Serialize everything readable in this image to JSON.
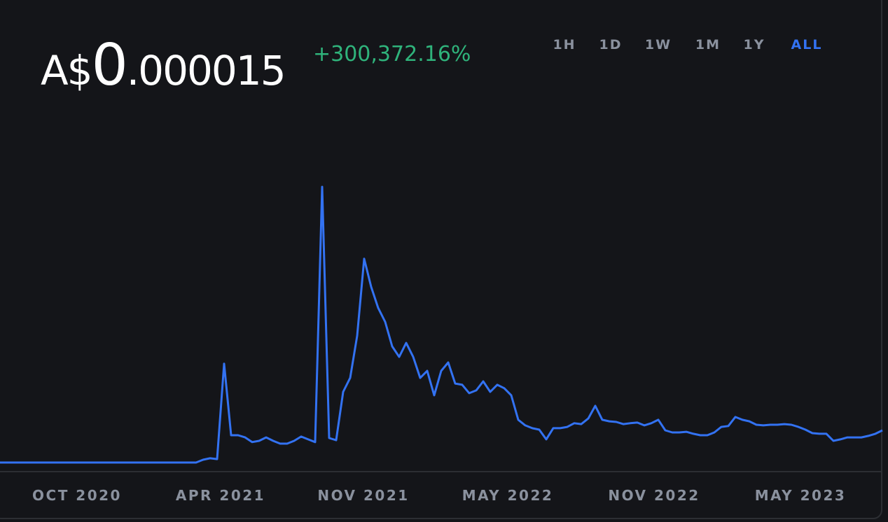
{
  "price": {
    "currency": "A$",
    "whole": "0",
    "fraction": ".000015"
  },
  "change": "+300,372.16%",
  "ranges": [
    "1H",
    "1D",
    "1W",
    "1M",
    "1Y",
    "ALL"
  ],
  "selected_range": "ALL",
  "chart_data": {
    "type": "line",
    "color": "#3372f2",
    "values": [
      5e-09,
      5e-09,
      5e-09,
      5e-09,
      5e-09,
      5e-09,
      5e-09,
      5e-09,
      5e-09,
      5e-09,
      5e-09,
      5e-09,
      5e-09,
      5e-09,
      5e-09,
      5e-09,
      5e-09,
      5e-09,
      5e-09,
      5e-09,
      5e-09,
      5e-09,
      5e-09,
      5e-09,
      5e-09,
      5e-09,
      5e-09,
      5e-09,
      5e-09,
      1.3e-06,
      2e-06,
      1.6e-06,
      4.6e-05,
      1.27e-05,
      1.27e-05,
      1.17e-05,
      9.5e-06,
      1.01e-05,
      1.17e-05,
      1.01e-05,
      8.8e-06,
      8.8e-06,
      1.01e-05,
      1.21e-05,
      1.08e-05,
      9.5e-06,
      0.0001284,
      1.14e-05,
      1.04e-05,
      3.29e-05,
      3.94e-05,
      5.9e-05,
      9.49e-05,
      8.18e-05,
      7.2e-05,
      6.55e-05,
      5.41e-05,
      4.92e-05,
      5.57e-05,
      4.92e-05,
      3.94e-05,
      4.27e-05,
      3.13e-05,
      4.27e-05,
      4.66e-05,
      3.68e-05,
      3.62e-05,
      3.23e-05,
      3.36e-05,
      3.78e-05,
      3.29e-05,
      3.62e-05,
      3.46e-05,
      3.13e-05,
      1.99e-05,
      1.73e-05,
      1.6e-05,
      1.53e-05,
      1.08e-05,
      1.6e-05,
      1.6e-05,
      1.66e-05,
      1.83e-05,
      1.79e-05,
      2.05e-05,
      2.64e-05,
      1.99e-05,
      1.92e-05,
      1.89e-05,
      1.79e-05,
      1.83e-05,
      1.86e-05,
      1.73e-05,
      1.83e-05,
      1.99e-05,
      1.5e-05,
      1.4e-05,
      1.4e-05,
      1.43e-05,
      1.34e-05,
      1.27e-05,
      1.27e-05,
      1.4e-05,
      1.66e-05,
      1.7e-05,
      2.12e-05,
      1.99e-05,
      1.92e-05,
      1.76e-05,
      1.73e-05,
      1.76e-05,
      1.76e-05,
      1.79e-05,
      1.76e-05,
      1.66e-05,
      1.53e-05,
      1.37e-05,
      1.34e-05,
      1.34e-05,
      1.01e-05,
      1.08e-05,
      1.17e-05,
      1.17e-05,
      1.17e-05,
      1.24e-05,
      1.34e-05,
      1.5e-05
    ],
    "ylim": [
      0,
      0.00016
    ],
    "xticks": [
      {
        "value": 11,
        "label": "OCT 2020"
      },
      {
        "value": 31.5,
        "label": "APR 2021"
      },
      {
        "value": 51.9,
        "label": "NOV 2021"
      },
      {
        "value": 72.5,
        "label": "MAY 2022"
      },
      {
        "value": 93.4,
        "label": "NOV 2022"
      },
      {
        "value": 114.3,
        "label": "MAY 2023"
      }
    ]
  }
}
